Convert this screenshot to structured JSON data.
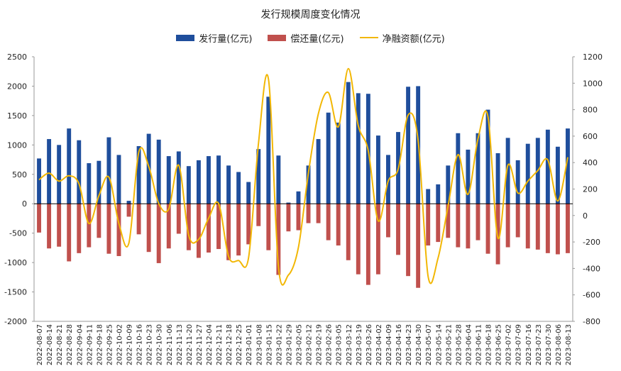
{
  "colors": {
    "issue": "#1f4e9c",
    "repay": "#c0504d",
    "net": "#f2b705",
    "axis": "#000000",
    "text": "#222222"
  },
  "chart_data": {
    "type": "bar",
    "title": "发行规模周度变化情况",
    "categories": [
      "2022-08-07",
      "2022-08-14",
      "2022-08-21",
      "2022-08-28",
      "2022-09-04",
      "2022-09-11",
      "2022-09-18",
      "2022-09-25",
      "2022-10-02",
      "2022-10-09",
      "2022-10-16",
      "2022-10-23",
      "2022-10-30",
      "2022-11-06",
      "2022-11-13",
      "2022-11-20",
      "2022-11-27",
      "2022-12-04",
      "2022-12-11",
      "2022-12-18",
      "2022-12-25",
      "2023-01-01",
      "2023-01-08",
      "2023-01-15",
      "2023-01-22",
      "2023-01-29",
      "2023-02-05",
      "2023-02-12",
      "2023-02-19",
      "2023-02-26",
      "2023-03-05",
      "2023-03-12",
      "2023-03-19",
      "2023-03-26",
      "2023-04-02",
      "2023-04-09",
      "2023-04-16",
      "2023-04-23",
      "2023-04-30",
      "2023-05-07",
      "2023-05-14",
      "2023-05-21",
      "2023-05-28",
      "2023-06-04",
      "2023-06-11",
      "2023-06-18",
      "2023-06-25",
      "2023-07-02",
      "2023-07-09",
      "2023-07-16",
      "2023-07-23",
      "2023-07-30",
      "2023-08-06",
      "2023-08-13"
    ],
    "x_tick_labels": [
      "2022-08-07",
      "2022-08-14",
      "2022-08-21",
      "2022-08-28",
      "2022-09-04",
      "2022-09-11",
      "2022-09-18",
      "2022-09-25",
      "2022-10-02",
      "2022-10-09",
      "2022-10-16",
      "2022-10-23",
      "2022-10-30",
      "2022-11-06",
      "2022-11-13",
      "2022-11-20",
      "2022-11-27",
      "2022-12-04",
      "2022-12-11",
      "2022-12-18",
      "2022-12-25",
      "2023-01-01",
      "2023-01-08",
      "2023-01-15",
      "2023-01-22",
      "2023-01-29",
      "2023-02-05",
      "2023-02-12",
      "2023-02-19",
      "2023-02-26",
      "2023-03-05",
      "2023-03-12",
      "2023-03-19",
      "2023-03-26",
      "2023-04-02",
      "2023-04-09",
      "2023-04-16",
      "2023-04-23",
      "2023-04-30",
      "2023-05-07",
      "2023-05-14",
      "2023-05-21",
      "2023-05-28",
      "2023-06-04",
      "2023-06-11",
      "2023-06-18",
      "2023-06-25",
      "2023-07-02",
      "2023-07-09",
      "2023-07-16",
      "2023-07-23",
      "2023-07-30",
      "2023-08-06",
      "2023-08-13"
    ],
    "series": [
      {
        "name": "发行量(亿元)",
        "type": "bar",
        "axis": "left",
        "values": [
          770,
          1100,
          1000,
          1280,
          1080,
          690,
          730,
          1130,
          830,
          50,
          980,
          1190,
          1090,
          810,
          890,
          640,
          740,
          810,
          820,
          650,
          540,
          370,
          930,
          1820,
          820,
          20,
          210,
          650,
          1100,
          1550,
          1380,
          2070,
          1880,
          1870,
          1160,
          830,
          1220,
          1990,
          2000,
          250,
          330,
          650,
          1200,
          920,
          1200,
          1600,
          860,
          1120,
          740,
          1020,
          1120,
          1260,
          970,
          1280
        ]
      },
      {
        "name": "偿还量(亿元)",
        "type": "bar",
        "axis": "left",
        "values": [
          -490,
          -760,
          -730,
          -980,
          -840,
          -740,
          -580,
          -850,
          -890,
          -220,
          -520,
          -820,
          -1010,
          -760,
          -510,
          -790,
          -920,
          -830,
          -770,
          -960,
          -880,
          -690,
          -380,
          -790,
          -1210,
          -470,
          -450,
          -330,
          -330,
          -620,
          -710,
          -960,
          -1200,
          -1380,
          -1200,
          -570,
          -870,
          -1230,
          -1430,
          -710,
          -650,
          -580,
          -740,
          -760,
          -620,
          -850,
          -1030,
          -740,
          -570,
          -760,
          -780,
          -840,
          -860,
          -840
        ]
      },
      {
        "name": "净融资额(亿元)",
        "type": "line",
        "axis": "right",
        "values": [
          270,
          320,
          260,
          300,
          240,
          -60,
          150,
          290,
          -60,
          -210,
          480,
          370,
          90,
          50,
          380,
          -150,
          -180,
          -20,
          90,
          -310,
          -340,
          -320,
          550,
          1030,
          -390,
          -450,
          -240,
          320,
          770,
          930,
          670,
          1110,
          680,
          490,
          -40,
          260,
          350,
          760,
          570,
          -460,
          -320,
          70,
          460,
          160,
          580,
          750,
          -170,
          380,
          170,
          260,
          340,
          420,
          110,
          440
        ]
      }
    ],
    "left_axis": {
      "ylim": [
        -2000,
        2500
      ],
      "ticks": [
        -2000,
        -1500,
        -1000,
        -500,
        0,
        500,
        1000,
        1500,
        2000,
        2500
      ]
    },
    "right_axis": {
      "ylim": [
        -800,
        1200
      ],
      "ticks": [
        -800,
        -600,
        -400,
        -200,
        0,
        200,
        400,
        600,
        800,
        1000,
        1200
      ]
    },
    "grid": false,
    "legend_position": "top"
  }
}
